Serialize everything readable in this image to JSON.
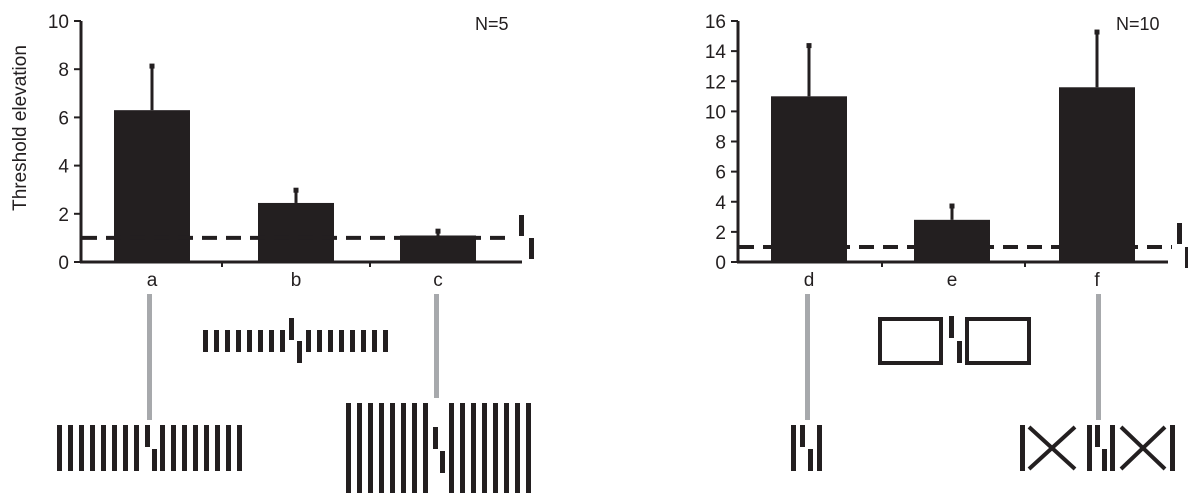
{
  "colors": {
    "bar": "#231f20",
    "axis": "#231f20",
    "connector": "#a7a9ac",
    "background": "#ffffff"
  },
  "chart_data": [
    {
      "type": "bar",
      "ylabel": "Threshold elevation",
      "annotation": "N=5",
      "categories": [
        "a",
        "b",
        "c"
      ],
      "values": [
        6.3,
        2.45,
        1.1
      ],
      "errors": [
        1.85,
        0.55,
        0.2
      ],
      "baseline": 1,
      "ylim": [
        0,
        10
      ],
      "yticks": [
        "0",
        "2",
        "4",
        "6",
        "8",
        "10"
      ],
      "grid": false
    },
    {
      "type": "bar",
      "ylabel": "",
      "annotation": "N=10",
      "categories": [
        "d",
        "e",
        "f"
      ],
      "values": [
        11.0,
        2.8,
        11.6
      ],
      "errors": [
        3.4,
        0.95,
        3.7
      ],
      "baseline": 1,
      "ylim": [
        0,
        16
      ],
      "yticks": [
        "0",
        "2",
        "4",
        "6",
        "8",
        "10",
        "12",
        "14",
        "16"
      ],
      "grid": false
    }
  ]
}
